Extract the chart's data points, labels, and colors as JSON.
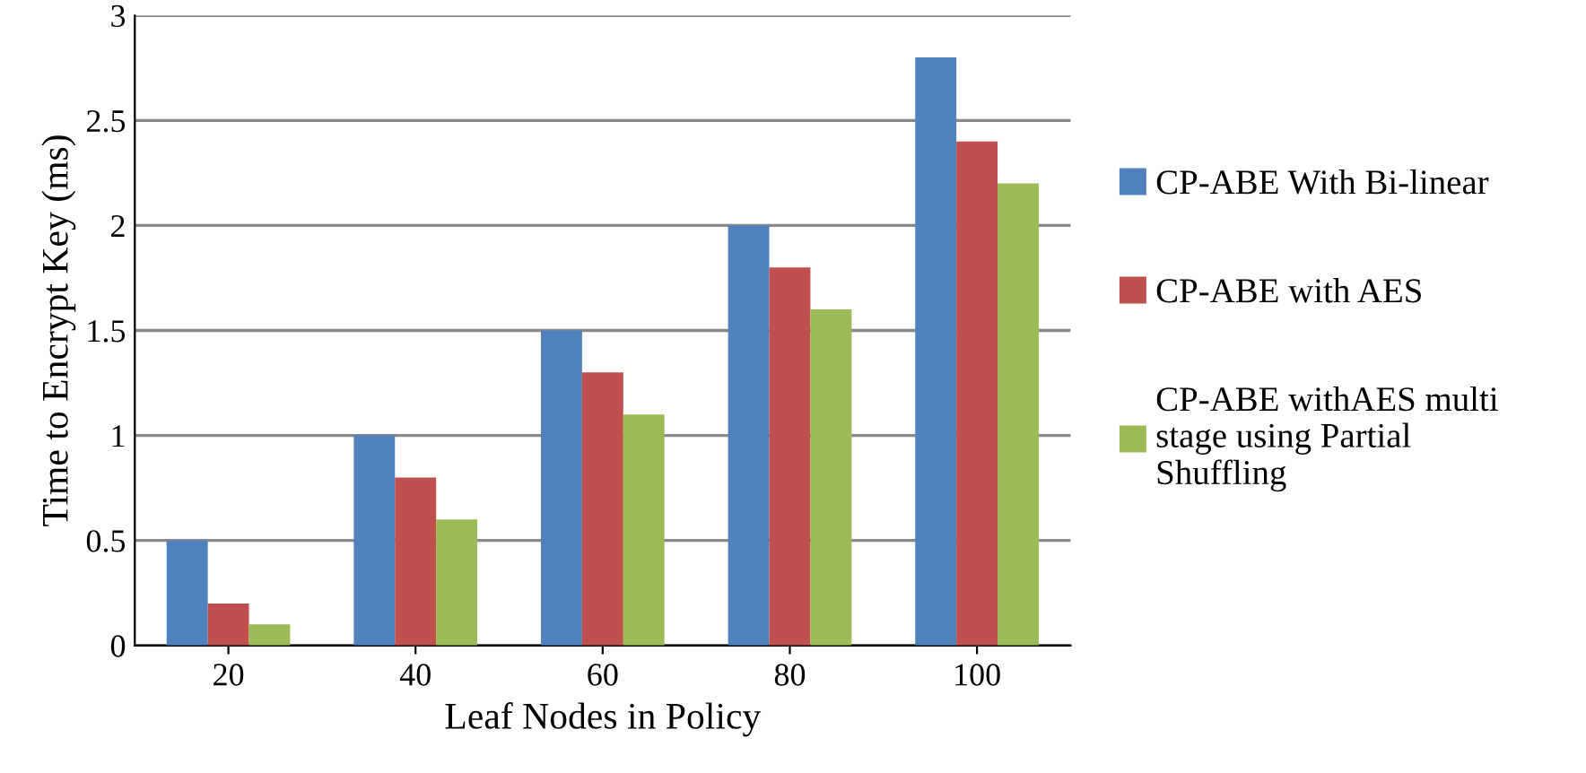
{
  "chart_data": {
    "type": "bar",
    "xlabel": "Leaf Nodes in Policy",
    "ylabel": "Time to Encrypt Key (ms)",
    "categories": [
      "20",
      "40",
      "60",
      "80",
      "100"
    ],
    "series": [
      {
        "name": "CP-ABE With Bi-linear",
        "color": "#4f81bd",
        "values": [
          0.5,
          1,
          1.5,
          2,
          2.8
        ]
      },
      {
        "name": "CP-ABE with AES",
        "color": "#c0504d",
        "values": [
          0.2,
          0.8,
          1.3,
          1.8,
          2.4
        ]
      },
      {
        "name": "CP-ABE withAES multi stage using Partial Shuffling",
        "color": "#9bbb59",
        "values": [
          0.1,
          0.6,
          1.1,
          1.6,
          2.2
        ]
      }
    ],
    "ylim": [
      0,
      3
    ],
    "yticks": [
      0,
      0.5,
      1,
      1.5,
      2,
      2.5,
      3
    ],
    "grid": "y",
    "legend": "right"
  }
}
